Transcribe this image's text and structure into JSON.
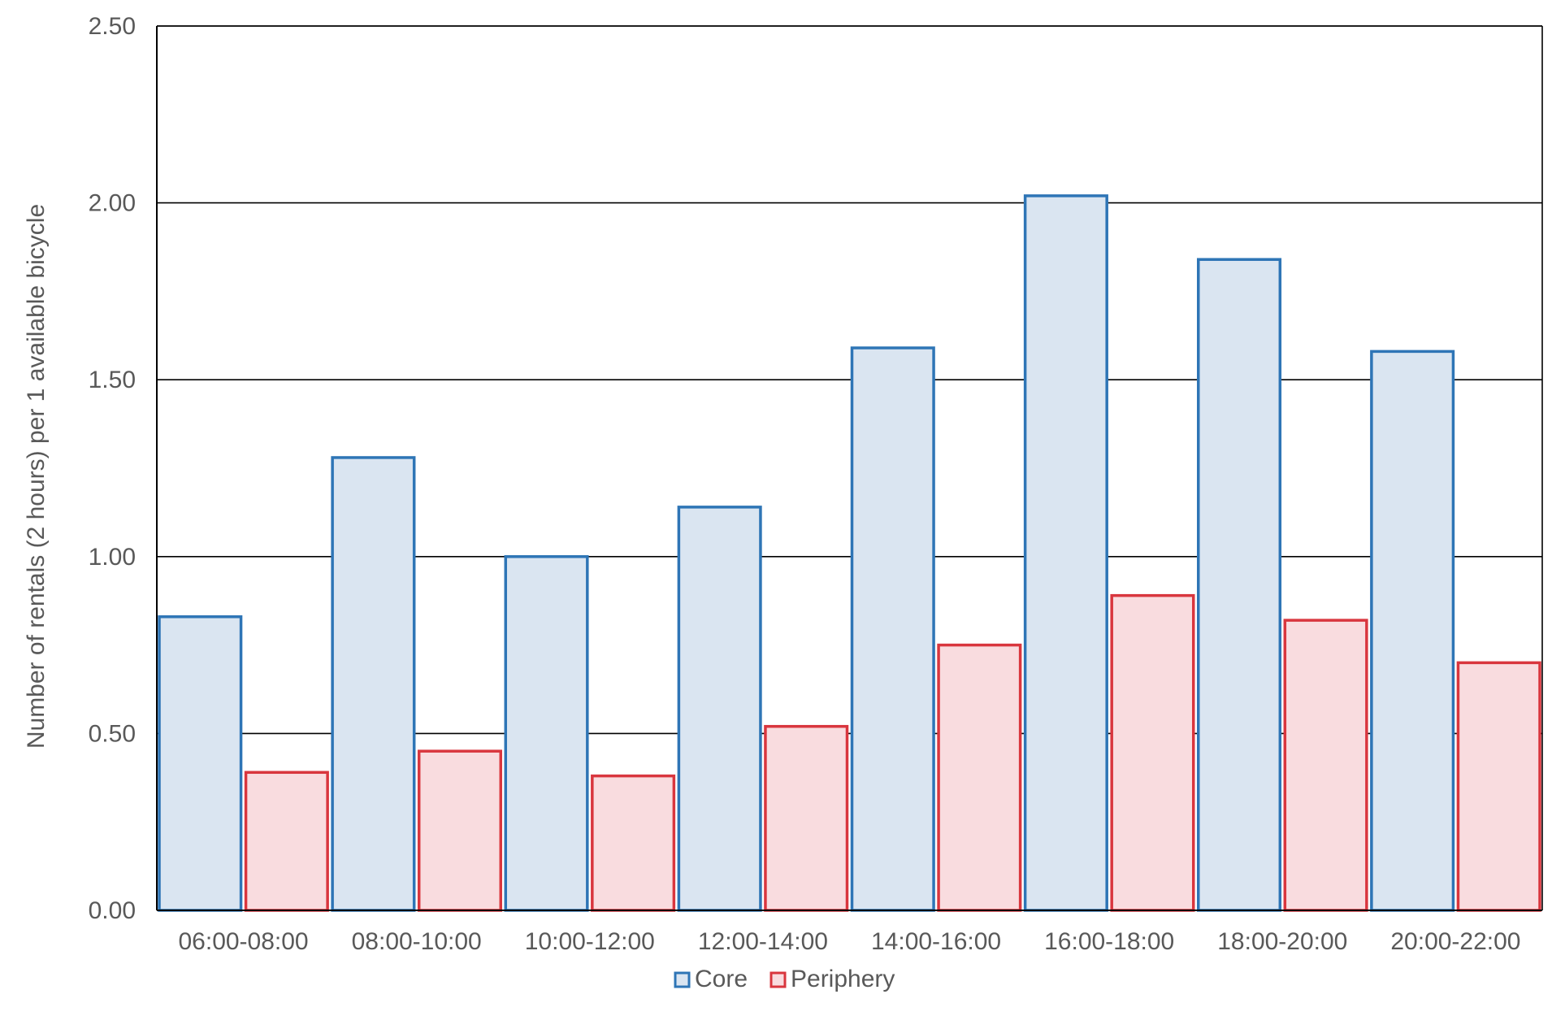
{
  "chart_data": {
    "type": "bar",
    "title": "",
    "xlabel": "",
    "ylabel": "Number of rentals (2 hours) per 1 available bicycle",
    "ylim": [
      0,
      2.5
    ],
    "yticks": [
      "0.00",
      "0.50",
      "1.00",
      "1.50",
      "2.00",
      "2.50"
    ],
    "grid": true,
    "legend_position": "bottom-center",
    "categories": [
      "06:00-08:00",
      "08:00-10:00",
      "10:00-12:00",
      "12:00-14:00",
      "14:00-16:00",
      "16:00-18:00",
      "18:00-20:00",
      "20:00-22:00"
    ],
    "series": [
      {
        "name": "Core",
        "values": [
          0.83,
          1.28,
          1.0,
          1.14,
          1.59,
          2.02,
          1.84,
          1.58
        ],
        "fill": "#dae5f1",
        "stroke": "#2e75b6"
      },
      {
        "name": "Periphery",
        "values": [
          0.39,
          0.45,
          0.38,
          0.52,
          0.75,
          0.89,
          0.82,
          0.7
        ],
        "fill": "#f9dcdf",
        "stroke": "#d9363e"
      }
    ]
  }
}
